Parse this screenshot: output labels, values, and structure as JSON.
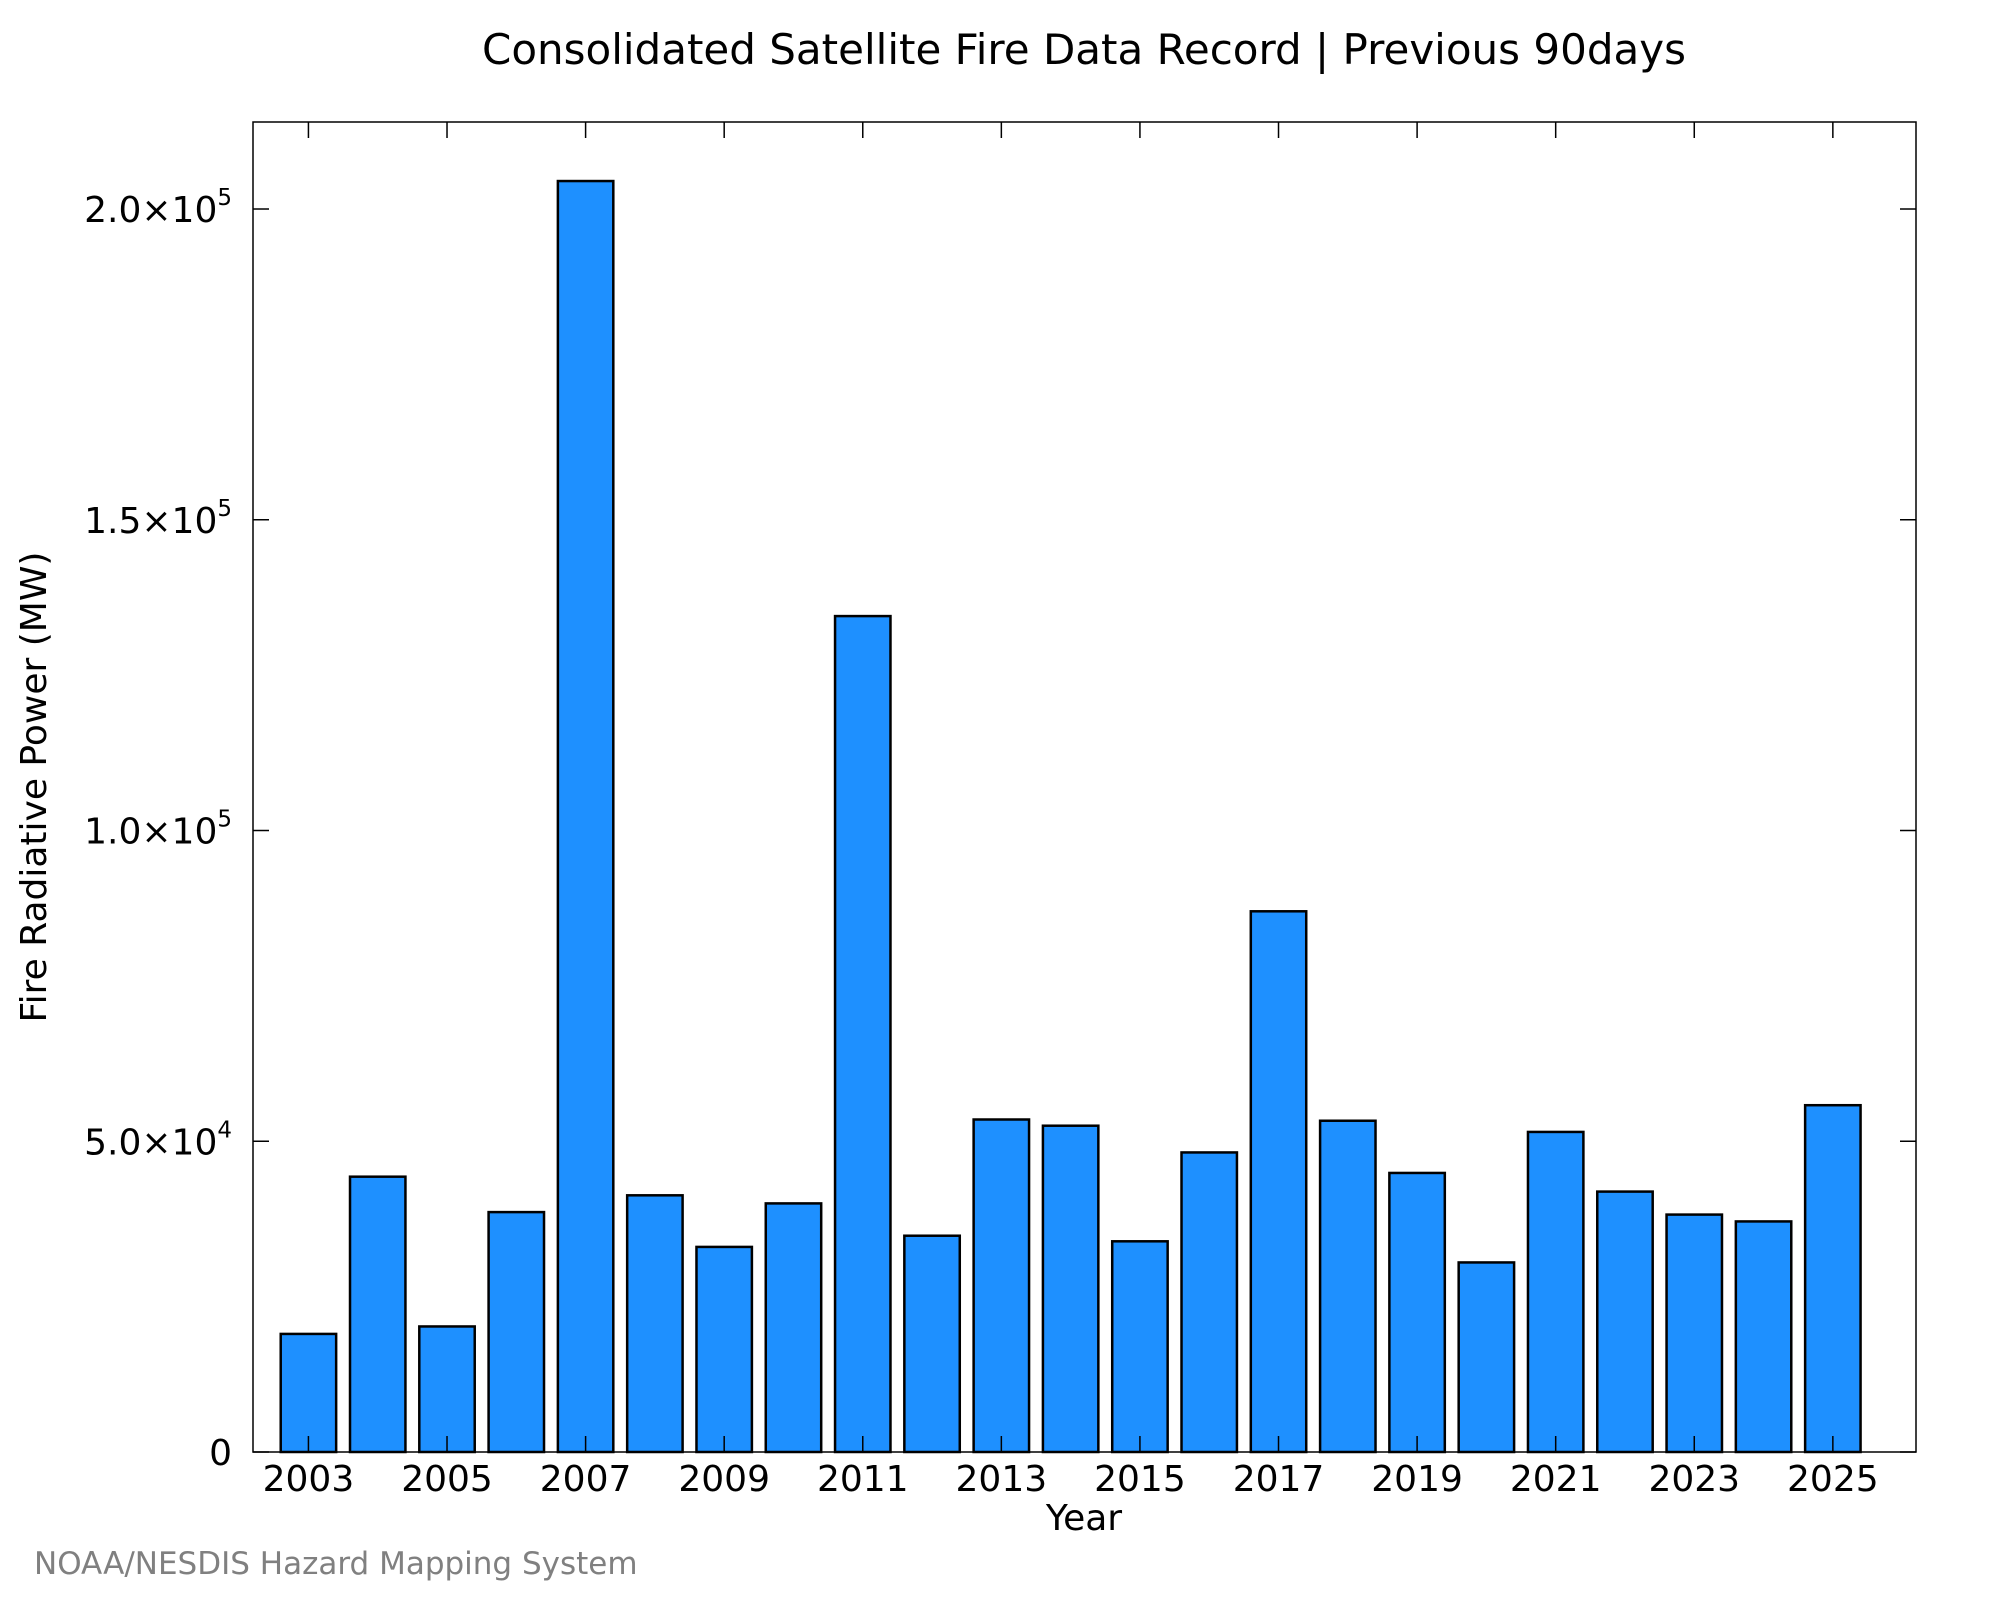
{
  "chart_data": {
    "type": "bar",
    "title": "Consolidated Satellite Fire Data Record | Previous 90days",
    "xlabel": "Year",
    "ylabel": "Fire Radiative Power (MW)",
    "credit": "NOAA/NESDIS Hazard Mapping System",
    "categories": [
      2003,
      2004,
      2005,
      2006,
      2007,
      2008,
      2009,
      2010,
      2011,
      2012,
      2013,
      2014,
      2015,
      2016,
      2017,
      2018,
      2019,
      2020,
      2021,
      2022,
      2023,
      2024,
      2025
    ],
    "values": [
      19000,
      44300,
      20200,
      38600,
      204500,
      41300,
      33000,
      40000,
      134500,
      34800,
      53500,
      52500,
      33900,
      48200,
      87000,
      53300,
      44900,
      30500,
      51500,
      41900,
      38200,
      37100,
      55800
    ],
    "x_tick_labels": [
      "2003",
      "2005",
      "2007",
      "2009",
      "2011",
      "2013",
      "2015",
      "2017",
      "2019",
      "2021",
      "2023",
      "2025"
    ],
    "y_ticks": [
      {
        "value": 0,
        "mantissa": "0",
        "exponent": ""
      },
      {
        "value": 50000,
        "mantissa": "5.0×10",
        "exponent": "4"
      },
      {
        "value": 100000,
        "mantissa": "1.0×10",
        "exponent": "5"
      },
      {
        "value": 150000,
        "mantissa": "1.5×10",
        "exponent": "5"
      },
      {
        "value": 200000,
        "mantissa": "2.0×10",
        "exponent": "5"
      }
    ],
    "ylim": [
      0,
      214000
    ],
    "xlim": [
      2002.2,
      2026.2
    ],
    "grid": false,
    "legend": false,
    "bar_color": "#1E90FF",
    "bar_edge_color": "#000000",
    "credit_color": "#808080"
  }
}
